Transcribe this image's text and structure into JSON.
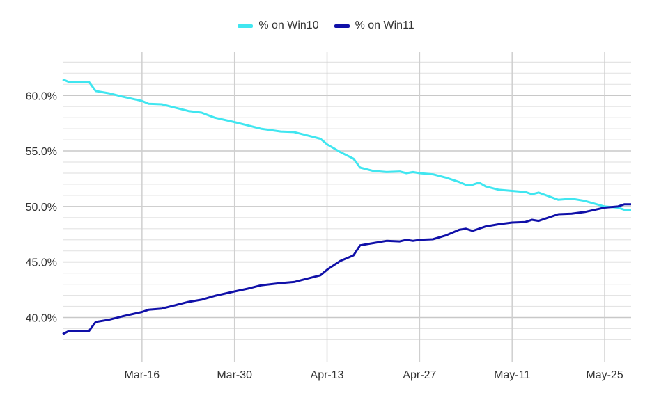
{
  "chart_data": {
    "type": "line",
    "title": "",
    "xlabel": "",
    "ylabel": "",
    "x_unit": "days since Mar-4",
    "xlim": [
      0,
      86
    ],
    "ylim": [
      37.9,
      63.9
    ],
    "y_ticks": [
      40,
      45,
      50,
      55,
      60
    ],
    "y_tick_labels": [
      "40.0%",
      "45.0%",
      "50.0%",
      "55.0%",
      "60.0%"
    ],
    "x_ticks": [
      12,
      26,
      40,
      54,
      68,
      82
    ],
    "x_tick_labels": [
      "Mar-16",
      "Mar-30",
      "Apr-13",
      "Apr-27",
      "May-11",
      "May-25"
    ],
    "grid": true,
    "legend_position": "top-center",
    "series": [
      {
        "name": "% on Win10",
        "color": "#40e6f0",
        "points": [
          [
            0,
            61.45
          ],
          [
            1,
            61.2
          ],
          [
            4,
            61.2
          ],
          [
            5,
            60.4
          ],
          [
            7,
            60.2
          ],
          [
            9,
            59.9
          ],
          [
            12,
            59.5
          ],
          [
            13,
            59.25
          ],
          [
            15,
            59.2
          ],
          [
            17,
            58.9
          ],
          [
            19,
            58.6
          ],
          [
            21,
            58.45
          ],
          [
            23,
            58.0
          ],
          [
            26,
            57.6
          ],
          [
            28,
            57.3
          ],
          [
            30,
            57.0
          ],
          [
            33,
            56.75
          ],
          [
            35,
            56.7
          ],
          [
            37,
            56.4
          ],
          [
            39,
            56.1
          ],
          [
            40,
            55.6
          ],
          [
            42,
            54.9
          ],
          [
            44,
            54.3
          ],
          [
            45,
            53.5
          ],
          [
            47,
            53.2
          ],
          [
            49,
            53.1
          ],
          [
            51,
            53.15
          ],
          [
            52,
            53.0
          ],
          [
            53,
            53.1
          ],
          [
            54,
            53.0
          ],
          [
            56,
            52.9
          ],
          [
            58,
            52.6
          ],
          [
            60,
            52.2
          ],
          [
            61,
            51.95
          ],
          [
            62,
            51.95
          ],
          [
            63,
            52.15
          ],
          [
            64,
            51.8
          ],
          [
            66,
            51.5
          ],
          [
            68,
            51.4
          ],
          [
            70,
            51.3
          ],
          [
            71,
            51.1
          ],
          [
            72,
            51.25
          ],
          [
            75,
            50.6
          ],
          [
            77,
            50.7
          ],
          [
            79,
            50.5
          ],
          [
            82,
            50.0
          ],
          [
            84,
            49.9
          ],
          [
            85,
            49.7
          ],
          [
            86,
            49.7
          ]
        ]
      },
      {
        "name": "% on Win11",
        "color": "#1010a8",
        "points": [
          [
            0,
            38.5
          ],
          [
            1,
            38.8
          ],
          [
            4,
            38.8
          ],
          [
            5,
            39.6
          ],
          [
            7,
            39.8
          ],
          [
            9,
            40.1
          ],
          [
            12,
            40.5
          ],
          [
            13,
            40.7
          ],
          [
            15,
            40.8
          ],
          [
            17,
            41.1
          ],
          [
            19,
            41.4
          ],
          [
            21,
            41.6
          ],
          [
            23,
            41.95
          ],
          [
            26,
            42.35
          ],
          [
            28,
            42.6
          ],
          [
            30,
            42.9
          ],
          [
            33,
            43.1
          ],
          [
            35,
            43.2
          ],
          [
            37,
            43.5
          ],
          [
            39,
            43.8
          ],
          [
            40,
            44.3
          ],
          [
            42,
            45.1
          ],
          [
            44,
            45.6
          ],
          [
            45,
            46.5
          ],
          [
            47,
            46.7
          ],
          [
            49,
            46.9
          ],
          [
            51,
            46.85
          ],
          [
            52,
            47.0
          ],
          [
            53,
            46.9
          ],
          [
            54,
            47.0
          ],
          [
            56,
            47.05
          ],
          [
            58,
            47.4
          ],
          [
            60,
            47.9
          ],
          [
            61,
            48.0
          ],
          [
            62,
            47.8
          ],
          [
            64,
            48.2
          ],
          [
            66,
            48.4
          ],
          [
            68,
            48.55
          ],
          [
            70,
            48.6
          ],
          [
            71,
            48.8
          ],
          [
            72,
            48.7
          ],
          [
            75,
            49.3
          ],
          [
            77,
            49.35
          ],
          [
            79,
            49.5
          ],
          [
            82,
            49.9
          ],
          [
            84,
            50.0
          ],
          [
            85,
            50.2
          ],
          [
            86,
            50.2
          ]
        ]
      }
    ]
  }
}
